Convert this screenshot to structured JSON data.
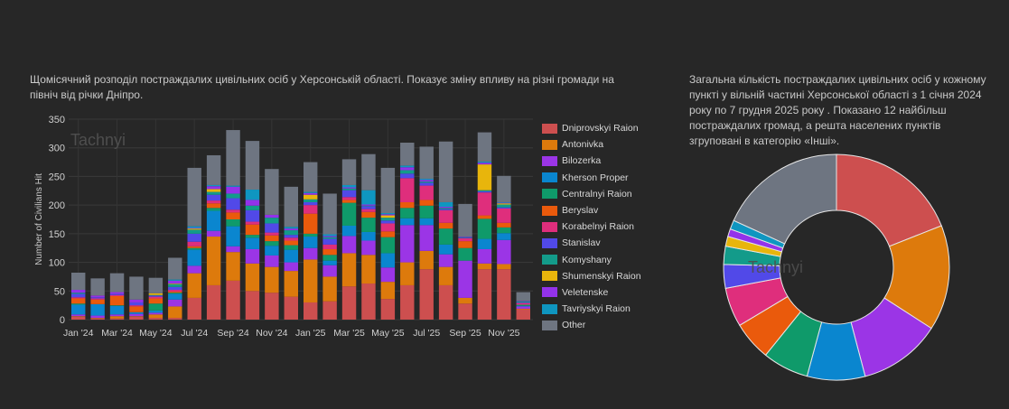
{
  "left_panel": {
    "description": "Щомісячний розподіл постраждалих цивільних осіб у Херсонській області. Показує зміну впливу на різні громади на північ від річки Дніпро."
  },
  "right_panel": {
    "description": "Загальна кількість постраждалих цивільних осіб у кожному пункті у вільній частині Херсонської області з 1 січня 2024 року по 7 грудня 2025 року . Показано 12 найбільш постраждалих громад, а решта населених пунктів згруповані в категорію «Інші»."
  },
  "watermark": "Tachnyi",
  "chart_data": [
    {
      "type": "bar",
      "stacked": true,
      "title": "",
      "xlabel": "",
      "ylabel": "Number of Civilians Hit",
      "ylim": [
        0,
        350
      ],
      "yticks": [
        0,
        50,
        100,
        150,
        200,
        250,
        300,
        350
      ],
      "grid": true,
      "legend_position": "right",
      "categories": [
        "Jan '24",
        "Feb '24",
        "Mar '24",
        "Apr '24",
        "May '24",
        "Jun '24",
        "Jul '24",
        "Aug '24",
        "Sep '24",
        "Oct '24",
        "Nov '24",
        "Dec '24",
        "Jan '25",
        "Feb '25",
        "Mar '25",
        "Apr '25",
        "May '25",
        "Jun '25",
        "Jul '25",
        "Aug '25",
        "Sep '25",
        "Oct '25",
        "Nov '25",
        "Dec '25"
      ],
      "xtick_labels": [
        "Jan '24",
        "Mar '24",
        "May '24",
        "Jul '24",
        "Sep '24",
        "Nov '24",
        "Jan '25",
        "Mar '25",
        "May '25",
        "Jul '25",
        "Sep '25",
        "Nov '25"
      ],
      "series": [
        {
          "name": "Dniprovskyi Raion",
          "color": "#cd4f4f",
          "values": [
            5,
            2,
            2,
            5,
            3,
            3,
            38,
            60,
            68,
            50,
            47,
            40,
            30,
            32,
            58,
            63,
            36,
            60,
            88,
            60,
            28,
            88,
            88,
            18
          ]
        },
        {
          "name": "Antonivka",
          "color": "#dd7a0c",
          "values": [
            1,
            1,
            4,
            1,
            6,
            20,
            43,
            85,
            50,
            48,
            45,
            45,
            75,
            43,
            58,
            50,
            30,
            40,
            32,
            32,
            10,
            10,
            9,
            1
          ]
        },
        {
          "name": "Bilozerka",
          "color": "#9b35e6",
          "values": [
            3,
            4,
            3,
            4,
            3,
            12,
            13,
            10,
            10,
            25,
            20,
            15,
            20,
            20,
            30,
            25,
            25,
            65,
            45,
            22,
            65,
            25,
            42,
            4
          ]
        },
        {
          "name": "Kherson Proper",
          "color": "#0a86cf",
          "values": [
            17,
            20,
            15,
            3,
            4,
            10,
            28,
            35,
            35,
            20,
            17,
            22,
            20,
            8,
            18,
            15,
            25,
            12,
            12,
            17,
            0,
            18,
            12,
            1
          ]
        },
        {
          "name": "Centralnyi Raion",
          "color": "#0f9a6a",
          "values": [
            2,
            0,
            1,
            0,
            12,
            2,
            3,
            5,
            12,
            5,
            8,
            8,
            5,
            10,
            40,
            25,
            28,
            18,
            22,
            28,
            22,
            35,
            10,
            2
          ]
        },
        {
          "name": "Beryslav",
          "color": "#ea5a0c",
          "values": [
            9,
            8,
            16,
            10,
            9,
            2,
            3,
            8,
            12,
            18,
            10,
            8,
            35,
            10,
            5,
            10,
            10,
            10,
            10,
            10,
            12,
            6,
            8,
            0
          ]
        },
        {
          "name": "Korabelnyi Raion",
          "color": "#df2e7c",
          "values": [
            2,
            2,
            2,
            2,
            3,
            3,
            8,
            5,
            5,
            5,
            5,
            5,
            15,
            8,
            5,
            5,
            14,
            42,
            25,
            22,
            5,
            40,
            25,
            3
          ]
        },
        {
          "name": "Stanislav",
          "color": "#5149e8",
          "values": [
            6,
            2,
            2,
            5,
            2,
            5,
            14,
            10,
            20,
            20,
            16,
            5,
            5,
            10,
            12,
            5,
            5,
            8,
            5,
            2,
            1,
            2,
            2,
            1
          ]
        },
        {
          "name": "Komyshany",
          "color": "#139b8a",
          "values": [
            2,
            0,
            0,
            0,
            1,
            5,
            7,
            5,
            8,
            8,
            10,
            8,
            5,
            3,
            3,
            1,
            5,
            6,
            2,
            2,
            1,
            2,
            5,
            2
          ]
        },
        {
          "name": "Shumenskyi Raion",
          "color": "#e8b50c",
          "values": [
            0,
            0,
            0,
            0,
            3,
            1,
            2,
            5,
            0,
            0,
            0,
            0,
            8,
            0,
            0,
            0,
            4,
            0,
            0,
            0,
            0,
            45,
            2,
            0
          ]
        },
        {
          "name": "Veletenske",
          "color": "#9332ea",
          "values": [
            5,
            3,
            3,
            5,
            0,
            5,
            1,
            5,
            12,
            10,
            5,
            3,
            3,
            2,
            2,
            2,
            2,
            5,
            3,
            2,
            1,
            3,
            1,
            1
          ]
        },
        {
          "name": "Tavriyskyi Raion",
          "color": "#0f96c0",
          "values": [
            0,
            0,
            0,
            0,
            0,
            2,
            3,
            2,
            2,
            18,
            0,
            3,
            2,
            3,
            4,
            25,
            2,
            3,
            2,
            8,
            0,
            2,
            1,
            0
          ]
        },
        {
          "name": "Other",
          "color": "#6e7581",
          "values": [
            30,
            30,
            33,
            40,
            27,
            38,
            102,
            52,
            97,
            85,
            80,
            70,
            52,
            71,
            45,
            63,
            79,
            40,
            56,
            106,
            57,
            51,
            46,
            15
          ]
        }
      ]
    },
    {
      "type": "pie",
      "donut": true,
      "title": "",
      "legend_position": "none",
      "labels": [
        "Dniprovskyi Raion",
        "Antonivka",
        "Bilozerka",
        "Kherson Proper",
        "Centralnyi Raion",
        "Beryslav",
        "Korabelnyi Raion",
        "Stanislav",
        "Komyshany",
        "Shumenskyi Raion",
        "Veletenske",
        "Tavriyskyi Raion",
        "Other"
      ],
      "colors": [
        "#cd4f4f",
        "#dd7a0c",
        "#9b35e6",
        "#0a86cf",
        "#0f9a6a",
        "#ea5a0c",
        "#df2e7c",
        "#5149e8",
        "#139b8a",
        "#e8b50c",
        "#9332ea",
        "#0f96c0",
        "#6e7581"
      ],
      "values": [
        19.0,
        15.1,
        11.8,
        8.3,
        6.6,
        5.6,
        5.6,
        3.4,
        2.6,
        1.4,
        1.1,
        1.3,
        18.2
      ]
    }
  ]
}
